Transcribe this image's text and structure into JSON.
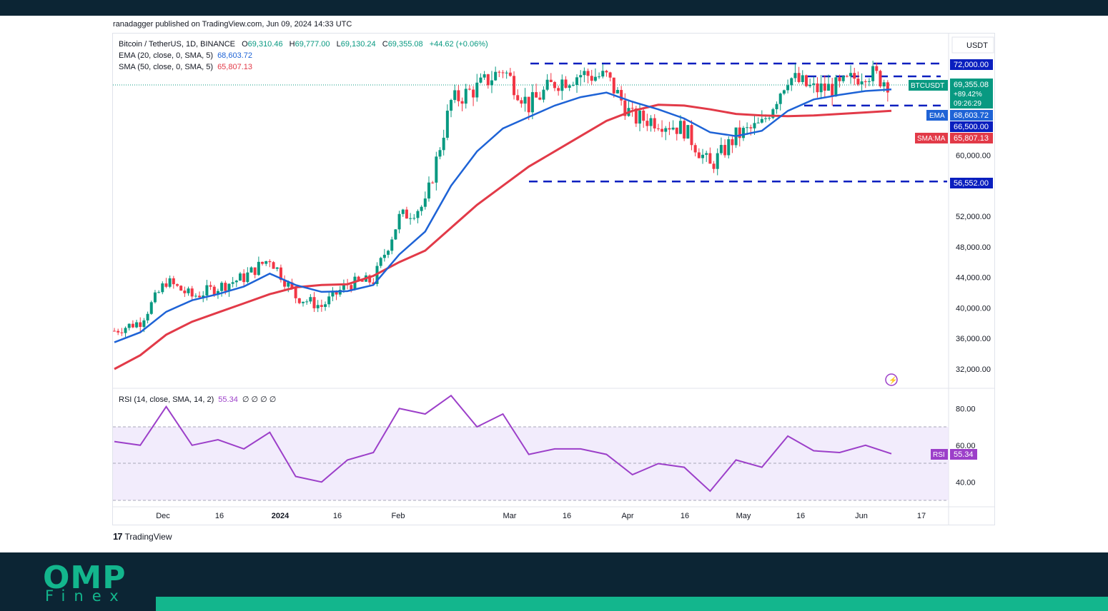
{
  "header": {
    "published": "ranadagger published on TradingView.com, Jun 09, 2024 14:33 UTC"
  },
  "legend": {
    "symbol": "Bitcoin / TetherUS, 1D, BINANCE",
    "o_label": "O",
    "o_value": "69,310.46",
    "h_label": "H",
    "h_value": "69,777.00",
    "l_label": "L",
    "l_value": "69,130.24",
    "c_label": "C",
    "c_value": "69,355.08",
    "change": "+44.62 (+0.06%)",
    "ema_label": "EMA (20, close, 0, SMA, 5)",
    "ema_value": "68,603.72",
    "sma_label": "SMA (50, close, 0, SMA, 5)",
    "sma_value": "65,807.13"
  },
  "rsi_legend": {
    "label": "RSI (14, close, SMA, 14, 2)",
    "value": "55.34",
    "extras": "∅ ∅ ∅ ∅"
  },
  "price_scale": {
    "currency": "USDT"
  },
  "tags": {
    "level_72000": "72,000.00",
    "btc_symbol": "BTCUSDT",
    "btc_price": "69,355.08",
    "btc_change": "+89.42%",
    "btc_countdown": "09:26:29",
    "ema_tag": "EMA",
    "ema_price": "68,603.72",
    "level_66500": "66,500.00",
    "sma_tag": "SMA:MA",
    "sma_price": "65,807.13",
    "level_56552": "56,552.00",
    "rsi_tag": "RSI",
    "rsi_value": "55.34"
  },
  "colors": {
    "ema": "#1e63d6",
    "sma": "#e23a48",
    "rsi": "#9c3fc9",
    "up": "#089981",
    "down": "#f23645",
    "level": "#0a1fbf",
    "accent": "#13b68d",
    "background": "#0c2534"
  },
  "branding": {
    "tradingview": "TradingView",
    "omp": "OMP",
    "finex": "Finex"
  },
  "chart_data": [
    {
      "type": "line",
      "title": "Bitcoin / TetherUS, 1D, BINANCE",
      "xlabel": "",
      "ylabel": "",
      "x_ticks": [
        "Dec",
        "16",
        "2024",
        "16",
        "Feb",
        "Mar",
        "16",
        "Apr",
        "16",
        "May",
        "16",
        "Jun",
        "17"
      ],
      "y_ticks": [
        "32,000.00",
        "36,000.00",
        "40,000.00",
        "44,000.00",
        "48,000.00",
        "52,000.00",
        "60,000.00"
      ],
      "ylim": [
        30000,
        75000
      ],
      "grid": false,
      "horizontal_levels": [
        72000,
        66500,
        56552
      ],
      "series": [
        {
          "name": "BTCUSDT",
          "x": [
            "Nov 24",
            "Dec 1",
            "Dec 8",
            "Dec 16",
            "Dec 24",
            "Jan 1",
            "Jan 11",
            "Jan 20",
            "Jan 28",
            "Feb 1",
            "Feb 10",
            "Feb 20",
            "Feb 28",
            "Mar 5",
            "Mar 10",
            "Mar 14",
            "Mar 20",
            "Mar 27",
            "Apr 1",
            "Apr 8",
            "Apr 13",
            "Apr 20",
            "Apr 28",
            "May 1",
            "May 8",
            "May 15",
            "May 21",
            "May 28",
            "Jun 3",
            "Jun 6",
            "Jun 9"
          ],
          "values": [
            37000,
            38200,
            43500,
            41500,
            42700,
            44000,
            46500,
            41500,
            40200,
            43100,
            43600,
            51800,
            53500,
            67000,
            68800,
            71300,
            66500,
            69500,
            70600,
            70200,
            64900,
            64500,
            63400,
            58500,
            62500,
            64000,
            70300,
            68600,
            68900,
            71000,
            69355
          ]
        },
        {
          "name": "EMA",
          "x": [
            "Nov 24",
            "Dec 1",
            "Dec 8",
            "Dec 16",
            "Dec 24",
            "Jan 1",
            "Jan 11",
            "Jan 20",
            "Jan 28",
            "Feb 1",
            "Feb 10",
            "Feb 20",
            "Feb 28",
            "Mar 5",
            "Mar 10",
            "Mar 14",
            "Mar 20",
            "Mar 27",
            "Apr 1",
            "Apr 8",
            "Apr 13",
            "Apr 20",
            "Apr 28",
            "May 1",
            "May 8",
            "May 15",
            "May 21",
            "May 28",
            "Jun 3",
            "Jun 6",
            "Jun 9"
          ],
          "values": [
            35500,
            36800,
            39500,
            41000,
            41800,
            42800,
            44500,
            43000,
            42100,
            42200,
            43000,
            47000,
            50000,
            56000,
            60500,
            63500,
            65000,
            66500,
            67600,
            68200,
            67000,
            66000,
            64800,
            63000,
            62500,
            63200,
            65800,
            67300,
            67900,
            68400,
            68604
          ]
        },
        {
          "name": "SMA:MA",
          "x": [
            "Nov 24",
            "Dec 1",
            "Dec 8",
            "Dec 16",
            "Dec 24",
            "Jan 1",
            "Jan 11",
            "Jan 20",
            "Jan 28",
            "Feb 1",
            "Feb 10",
            "Feb 20",
            "Feb 28",
            "Mar 5",
            "Mar 10",
            "Mar 14",
            "Mar 20",
            "Mar 27",
            "Apr 1",
            "Apr 8",
            "Apr 13",
            "Apr 20",
            "Apr 28",
            "May 1",
            "May 8",
            "May 15",
            "May 21",
            "May 28",
            "Jun 3",
            "Jun 6",
            "Jun 9"
          ],
          "values": [
            32000,
            33800,
            36500,
            38200,
            39400,
            40600,
            41800,
            42700,
            43000,
            43100,
            44200,
            46000,
            47500,
            50500,
            53500,
            56000,
            58500,
            60500,
            62500,
            64500,
            65800,
            66600,
            66500,
            66000,
            65400,
            65200,
            65100,
            65200,
            65400,
            65600,
            65807
          ]
        }
      ]
    },
    {
      "type": "line",
      "title": "RSI (14, close, SMA, 14, 2)",
      "xlabel": "",
      "ylabel": "",
      "y_ticks": [
        "40.00",
        "60.00",
        "80.00"
      ],
      "ylim": [
        30,
        92
      ],
      "band": [
        30,
        70
      ],
      "mid_line": 50,
      "series": [
        {
          "name": "RSI",
          "x": [
            "Nov 24",
            "Dec 1",
            "Dec 8",
            "Dec 16",
            "Dec 24",
            "Jan 1",
            "Jan 11",
            "Jan 20",
            "Jan 28",
            "Feb 1",
            "Feb 10",
            "Feb 20",
            "Feb 28",
            "Mar 5",
            "Mar 10",
            "Mar 14",
            "Mar 20",
            "Mar 27",
            "Apr 1",
            "Apr 8",
            "Apr 13",
            "Apr 20",
            "Apr 28",
            "May 1",
            "May 8",
            "May 15",
            "May 21",
            "May 28",
            "Jun 3",
            "Jun 6",
            "Jun 9"
          ],
          "values": [
            62,
            60,
            81,
            60,
            63,
            58,
            67,
            43,
            40,
            52,
            56,
            80,
            77,
            87,
            70,
            77,
            55,
            58,
            58,
            55,
            44,
            50,
            48,
            35,
            52,
            48,
            65,
            57,
            56,
            60,
            55.34
          ]
        }
      ]
    }
  ]
}
